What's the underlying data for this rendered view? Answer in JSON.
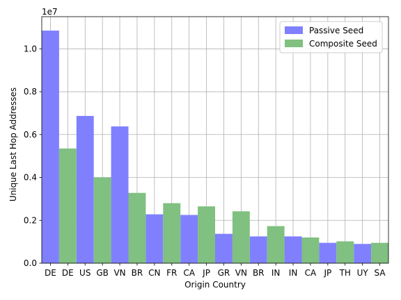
{
  "chart_data": {
    "type": "bar",
    "xlabel": "Origin Country",
    "ylabel": "Unique Last Hop Addresses",
    "y_multiplier_label": "1e7",
    "ylim": [
      0,
      11500000
    ],
    "y_ticks": [
      0,
      2000000,
      4000000,
      6000000,
      8000000,
      10000000
    ],
    "y_tick_labels": [
      "0.0",
      "0.2",
      "0.4",
      "0.6",
      "0.8",
      "1.0"
    ],
    "grid": true,
    "legend_position": "top-right",
    "categories": [
      "DE",
      "DE",
      "US",
      "GB",
      "VN",
      "BR",
      "CN",
      "FR",
      "CA",
      "JP",
      "GR",
      "VN",
      "BR",
      "IN",
      "IN",
      "CA",
      "JP",
      "TH",
      "UY",
      "SA"
    ],
    "series": [
      {
        "name": "Passive Seed",
        "color": "#8080ff",
        "values": [
          10850000,
          null,
          6870000,
          null,
          6380000,
          null,
          2280000,
          null,
          2250000,
          null,
          1370000,
          null,
          1250000,
          null,
          1250000,
          null,
          950000,
          null,
          900000,
          null
        ]
      },
      {
        "name": "Composite Seed",
        "color": "#80c080",
        "values": [
          null,
          5350000,
          null,
          4000000,
          null,
          3280000,
          null,
          2800000,
          null,
          2650000,
          null,
          2420000,
          null,
          1730000,
          null,
          1200000,
          null,
          1020000,
          null,
          950000
        ]
      }
    ]
  }
}
